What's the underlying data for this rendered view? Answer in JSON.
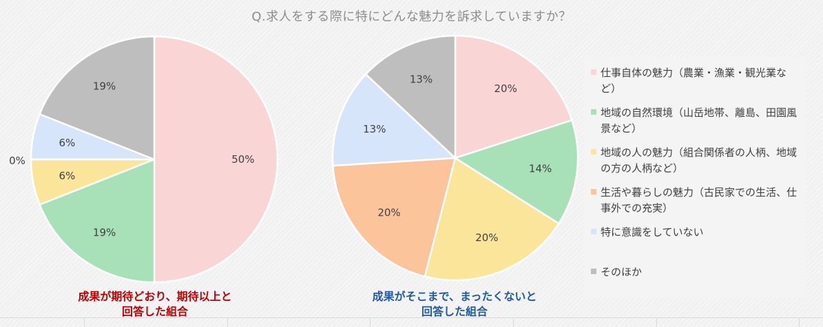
{
  "title": "Q.求人をする際に特にどんな魅力を訴求していますか？",
  "colors": {
    "work": "#f9d5d5",
    "nature": "#a8e1b7",
    "people": "#fbe59a",
    "life": "#fbc49a",
    "none": "#d7e5fa",
    "other": "#bebebe"
  },
  "legend": [
    {
      "key": "work",
      "label": "仕事自体の魅力（農業・漁業・観光業など）"
    },
    {
      "key": "nature",
      "label": "地域の自然環境（山岳地帯、離島、田園風景など）"
    },
    {
      "key": "people",
      "label": "地域の人の魅力（組合関係者の人柄、地域の方の人柄など）"
    },
    {
      "key": "life",
      "label": "生活や暮らしの魅力（古民家での生活、仕事外での充実）"
    },
    {
      "key": "none",
      "label": "特に意識をしていない"
    },
    {
      "key": "other",
      "label": "そのほか"
    }
  ],
  "chart_data": [
    {
      "type": "pie",
      "caption_lines": [
        "成果が期待どおり、期待以上と",
        "回答した組合"
      ],
      "slices": [
        {
          "key": "work",
          "value": 50,
          "label": "50%"
        },
        {
          "key": "nature",
          "value": 19,
          "label": "19%"
        },
        {
          "key": "people",
          "value": 6,
          "label": "6%"
        },
        {
          "key": "life",
          "value": 0,
          "label": "0%"
        },
        {
          "key": "none",
          "value": 6,
          "label": "6%"
        },
        {
          "key": "other",
          "value": 19,
          "label": "19%"
        }
      ]
    },
    {
      "type": "pie",
      "caption_lines": [
        "成果がそこまで、まったくないと",
        "回答した組合"
      ],
      "slices": [
        {
          "key": "work",
          "value": 20,
          "label": "20%"
        },
        {
          "key": "nature",
          "value": 14,
          "label": "14%"
        },
        {
          "key": "people",
          "value": 20,
          "label": "20%"
        },
        {
          "key": "life",
          "value": 20,
          "label": "20%"
        },
        {
          "key": "none",
          "value": 13,
          "label": "13%"
        },
        {
          "key": "other",
          "value": 13,
          "label": "13%"
        }
      ]
    }
  ]
}
